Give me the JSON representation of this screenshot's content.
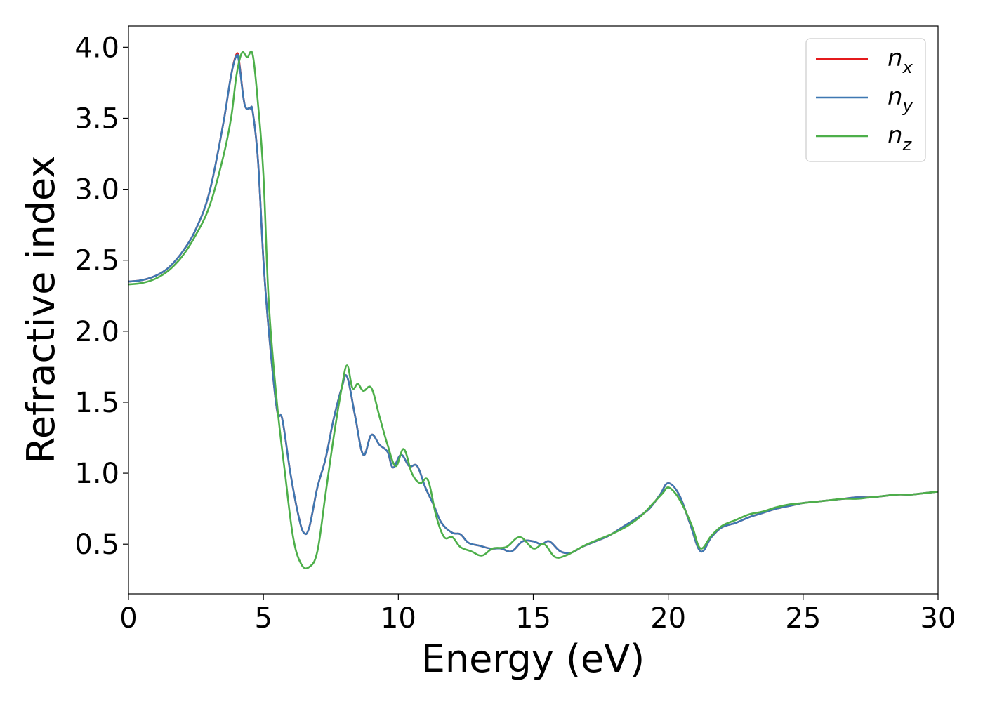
{
  "chart_data": {
    "type": "line",
    "title": "",
    "xlabel": "Energy (eV)",
    "ylabel": "Refractive index",
    "xlim": [
      0,
      30
    ],
    "ylim": [
      0.15,
      4.15
    ],
    "xticks": [
      0,
      5,
      10,
      15,
      20,
      25,
      30
    ],
    "xtick_labels": [
      "0",
      "5",
      "10",
      "15",
      "20",
      "25",
      "30"
    ],
    "yticks": [
      0.5,
      1.0,
      1.5,
      2.0,
      2.5,
      3.0,
      3.5,
      4.0
    ],
    "ytick_labels": [
      "0.5",
      "1.0",
      "1.5",
      "2.0",
      "2.5",
      "3.0",
      "3.5",
      "4.0"
    ],
    "grid": false,
    "legend_position": "top-right",
    "series": [
      {
        "name": "n_x",
        "label_main": "n",
        "label_sub": "x",
        "color": "#e41a1c",
        "x": [
          0,
          0.5,
          1,
          1.5,
          2,
          2.5,
          3,
          3.5,
          3.8,
          4.0,
          4.1,
          4.3,
          4.5,
          4.6,
          4.8,
          5.0,
          5.2,
          5.5,
          5.7,
          6.0,
          6.3,
          6.5,
          6.7,
          7.0,
          7.3,
          7.6,
          7.9,
          8.1,
          8.4,
          8.7,
          9.0,
          9.3,
          9.6,
          9.8,
          10.1,
          10.4,
          10.7,
          11.0,
          11.3,
          11.6,
          12.0,
          12.3,
          12.6,
          13.0,
          13.4,
          13.8,
          14.2,
          14.6,
          15.0,
          15.3,
          15.6,
          16.0,
          16.4,
          16.8,
          17.3,
          17.8,
          18.3,
          18.8,
          19.3,
          19.7,
          20.0,
          20.4,
          20.8,
          21.2,
          21.6,
          22.0,
          22.5,
          23.0,
          23.5,
          24.0,
          24.5,
          25.0,
          25.5,
          26.0,
          26.5,
          27.0,
          27.5,
          28.0,
          28.5,
          29.0,
          29.5,
          30.0
        ],
        "y": [
          2.35,
          2.36,
          2.39,
          2.45,
          2.56,
          2.72,
          2.98,
          3.45,
          3.8,
          3.95,
          3.9,
          3.6,
          3.57,
          3.55,
          3.2,
          2.5,
          2.0,
          1.45,
          1.38,
          1.0,
          0.7,
          0.58,
          0.62,
          0.9,
          1.1,
          1.38,
          1.6,
          1.68,
          1.4,
          1.13,
          1.27,
          1.2,
          1.15,
          1.04,
          1.13,
          1.05,
          1.05,
          0.9,
          0.78,
          0.65,
          0.58,
          0.57,
          0.51,
          0.49,
          0.47,
          0.47,
          0.45,
          0.52,
          0.52,
          0.5,
          0.52,
          0.45,
          0.44,
          0.48,
          0.52,
          0.56,
          0.62,
          0.68,
          0.75,
          0.85,
          0.93,
          0.85,
          0.65,
          0.45,
          0.55,
          0.62,
          0.65,
          0.69,
          0.72,
          0.75,
          0.77,
          0.79,
          0.8,
          0.81,
          0.82,
          0.83,
          0.83,
          0.84,
          0.85,
          0.85,
          0.86,
          0.87
        ]
      },
      {
        "name": "n_y",
        "label_main": "n",
        "label_sub": "y",
        "color": "#3e78b2",
        "x": [
          0,
          0.5,
          1,
          1.5,
          2,
          2.5,
          3,
          3.5,
          3.8,
          4.0,
          4.1,
          4.3,
          4.5,
          4.6,
          4.8,
          5.0,
          5.2,
          5.5,
          5.7,
          6.0,
          6.3,
          6.5,
          6.7,
          7.0,
          7.3,
          7.6,
          7.9,
          8.1,
          8.4,
          8.7,
          9.0,
          9.3,
          9.6,
          9.8,
          10.1,
          10.4,
          10.7,
          11.0,
          11.3,
          11.6,
          12.0,
          12.3,
          12.6,
          13.0,
          13.4,
          13.8,
          14.2,
          14.6,
          15.0,
          15.3,
          15.6,
          16.0,
          16.4,
          16.8,
          17.3,
          17.8,
          18.3,
          18.8,
          19.3,
          19.7,
          20.0,
          20.4,
          20.8,
          21.2,
          21.6,
          22.0,
          22.5,
          23.0,
          23.5,
          24.0,
          24.5,
          25.0,
          25.5,
          26.0,
          26.5,
          27.0,
          27.5,
          28.0,
          28.5,
          29.0,
          29.5,
          30.0
        ],
        "y": [
          2.35,
          2.36,
          2.39,
          2.45,
          2.56,
          2.72,
          2.98,
          3.45,
          3.8,
          3.94,
          3.89,
          3.6,
          3.57,
          3.55,
          3.2,
          2.5,
          2.0,
          1.45,
          1.38,
          1.0,
          0.7,
          0.58,
          0.62,
          0.9,
          1.1,
          1.38,
          1.6,
          1.68,
          1.4,
          1.13,
          1.27,
          1.2,
          1.15,
          1.04,
          1.13,
          1.05,
          1.05,
          0.9,
          0.78,
          0.65,
          0.58,
          0.57,
          0.51,
          0.49,
          0.47,
          0.47,
          0.45,
          0.52,
          0.52,
          0.5,
          0.52,
          0.45,
          0.44,
          0.48,
          0.52,
          0.56,
          0.62,
          0.68,
          0.75,
          0.85,
          0.93,
          0.85,
          0.65,
          0.45,
          0.55,
          0.62,
          0.65,
          0.69,
          0.72,
          0.75,
          0.77,
          0.79,
          0.8,
          0.81,
          0.82,
          0.83,
          0.83,
          0.84,
          0.85,
          0.85,
          0.86,
          0.87
        ]
      },
      {
        "name": "n_z",
        "label_main": "n",
        "label_sub": "z",
        "color": "#4daf4a",
        "x": [
          0,
          0.5,
          1,
          1.5,
          2,
          2.5,
          3,
          3.5,
          3.8,
          4.0,
          4.2,
          4.4,
          4.6,
          4.8,
          5.0,
          5.2,
          5.5,
          5.8,
          6.1,
          6.4,
          6.7,
          7.0,
          7.3,
          7.6,
          7.9,
          8.1,
          8.3,
          8.5,
          8.7,
          9.0,
          9.3,
          9.6,
          9.9,
          10.2,
          10.5,
          10.8,
          11.1,
          11.4,
          11.7,
          12.0,
          12.3,
          12.7,
          13.1,
          13.5,
          14.0,
          14.5,
          15.0,
          15.4,
          15.8,
          16.2,
          16.6,
          17.0,
          17.5,
          18.0,
          18.5,
          19.0,
          19.5,
          19.8,
          20.0,
          20.3,
          20.6,
          20.9,
          21.2,
          21.6,
          22.0,
          22.5,
          23.0,
          23.5,
          24.0,
          24.5,
          25.0,
          25.5,
          26.0,
          26.5,
          27.0,
          27.5,
          28.0,
          28.5,
          29.0,
          29.5,
          30.0
        ],
        "y": [
          2.33,
          2.34,
          2.37,
          2.43,
          2.53,
          2.68,
          2.88,
          3.22,
          3.5,
          3.8,
          3.96,
          3.93,
          3.95,
          3.6,
          3.1,
          2.2,
          1.5,
          1.0,
          0.55,
          0.36,
          0.34,
          0.45,
          0.85,
          1.25,
          1.6,
          1.76,
          1.6,
          1.63,
          1.58,
          1.6,
          1.4,
          1.2,
          1.05,
          1.17,
          1.0,
          0.93,
          0.95,
          0.7,
          0.55,
          0.55,
          0.48,
          0.45,
          0.42,
          0.47,
          0.48,
          0.55,
          0.47,
          0.5,
          0.41,
          0.42,
          0.46,
          0.5,
          0.54,
          0.58,
          0.63,
          0.7,
          0.8,
          0.86,
          0.9,
          0.85,
          0.75,
          0.62,
          0.47,
          0.56,
          0.63,
          0.67,
          0.71,
          0.73,
          0.76,
          0.78,
          0.79,
          0.8,
          0.81,
          0.82,
          0.82,
          0.83,
          0.84,
          0.85,
          0.85,
          0.86,
          0.87
        ]
      }
    ]
  }
}
